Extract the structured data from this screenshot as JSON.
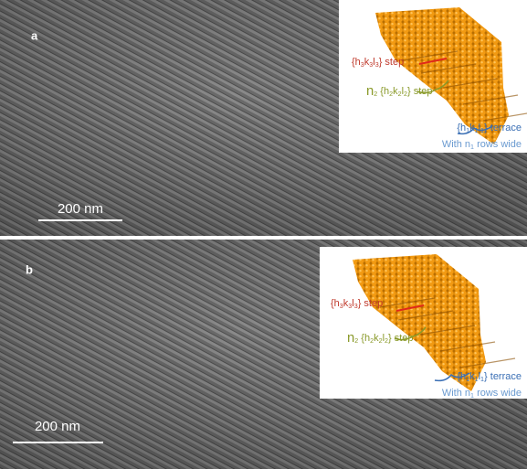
{
  "panels": [
    {
      "label": "a",
      "scale_bar": "200 nm",
      "inset": {
        "step": [
          "{h",
          "3",
          "k",
          "3",
          "l",
          "3",
          "} step"
        ],
        "n_step": [
          "n",
          "2",
          " {h",
          "2",
          "k",
          "2",
          "l",
          "2",
          "} step"
        ],
        "terrace": [
          "{h",
          "1",
          "k",
          "1",
          "l",
          "1",
          "} terrace"
        ],
        "rows": [
          "With n",
          "1",
          " rows wide"
        ]
      }
    },
    {
      "label": "b",
      "scale_bar": "200 nm",
      "inset": {
        "step": [
          "{h",
          "3",
          "k",
          "3",
          "l",
          "3",
          "} step"
        ],
        "n_step": [
          "n",
          "2",
          " {h",
          "2",
          "k",
          "2",
          "l",
          "2",
          "} step"
        ],
        "terrace": [
          "{h",
          "1",
          "k",
          "1",
          "l",
          "1",
          "} terrace"
        ],
        "rows": [
          "With n",
          "1",
          " rows wide"
        ]
      }
    }
  ]
}
